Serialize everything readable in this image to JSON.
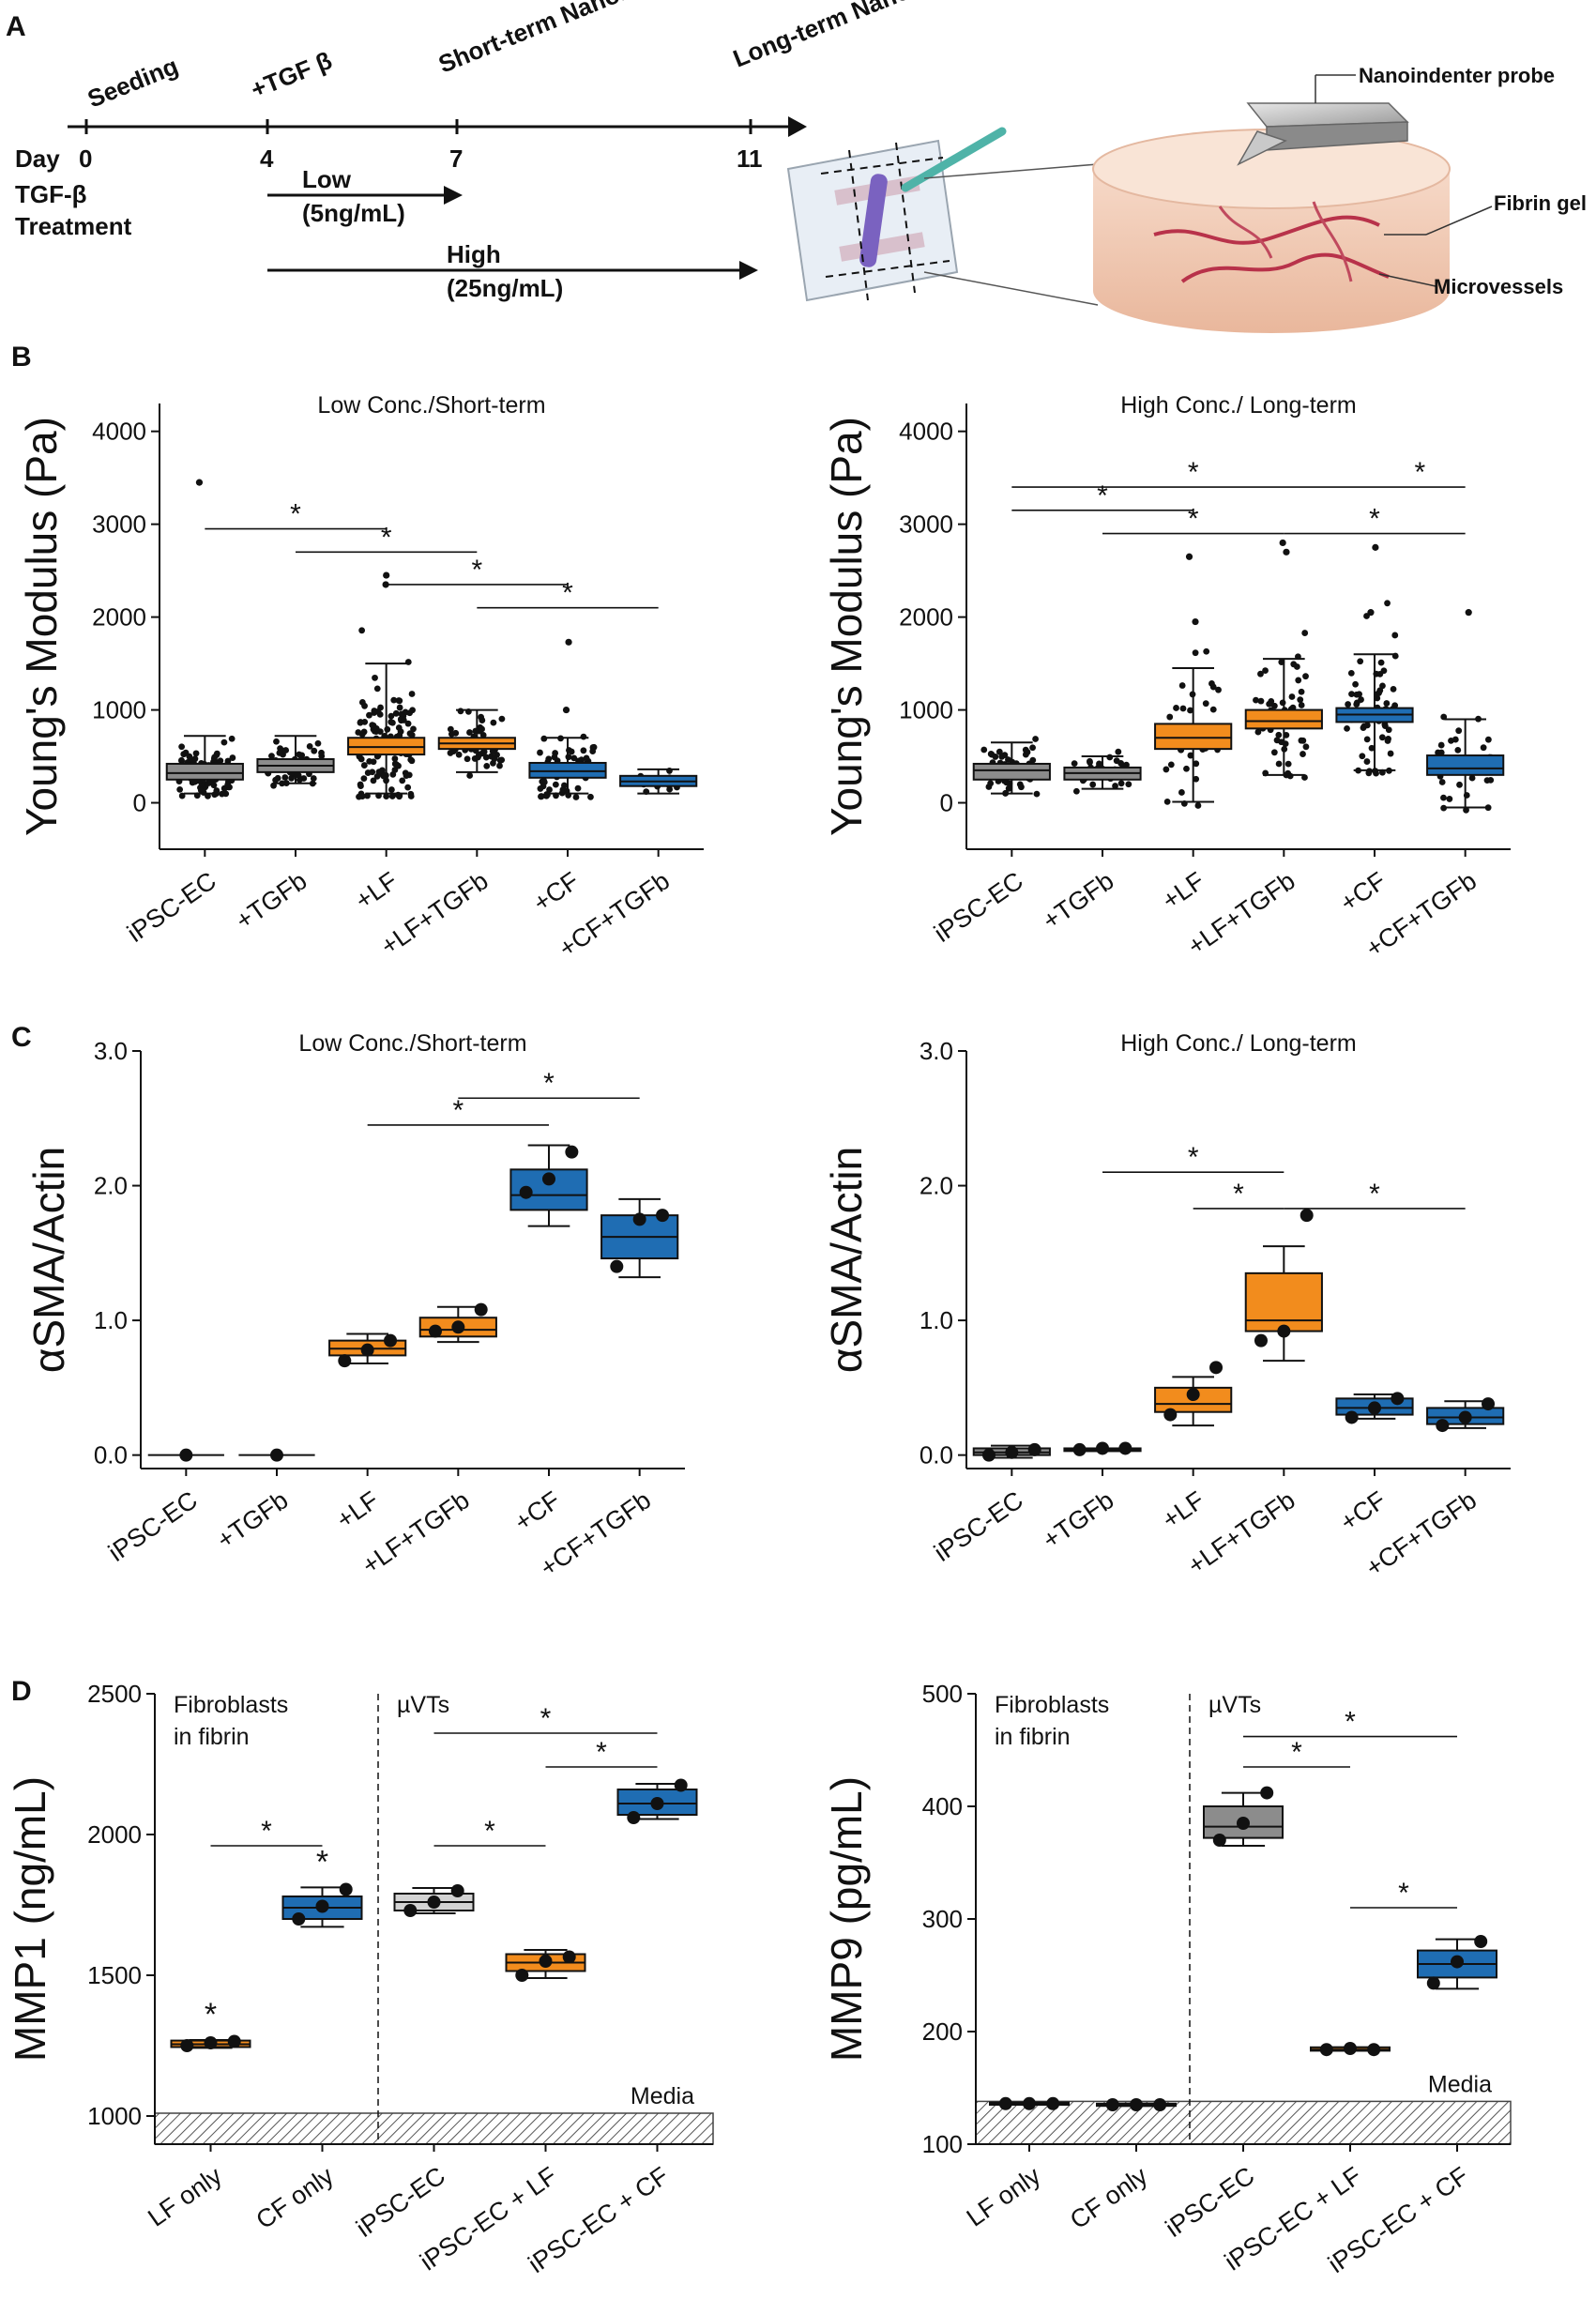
{
  "panel_a": {
    "letter": "A",
    "timeline": {
      "events": [
        {
          "label": "Seeding",
          "day": "0"
        },
        {
          "label": "+TGF β",
          "day": "4"
        },
        {
          "label": "Short-term Nanoindentation",
          "day": "7"
        },
        {
          "label": "Long-term Nanoindentation",
          "day": "11"
        }
      ],
      "day_label": "Day",
      "treatment_label_1": "TGF-β",
      "treatment_label_2": "Treatment",
      "low_label": "Low",
      "low_conc": "(5ng/mL)",
      "high_label": "High",
      "high_conc": "(25ng/mL)"
    },
    "schematic": {
      "probe": "Nanoindenter probe",
      "gel": "Fibrin gel",
      "vessels": "Microvessels"
    }
  },
  "colors": {
    "orange": "#f28c1d",
    "blue": "#1f6db3",
    "gray": "#8c8c8c",
    "lightgray": "#d3d3d3",
    "ink": "#111111"
  },
  "chart_data": [
    {
      "id": "B-left",
      "panel": "B",
      "type": "scatter",
      "title": "Low Conc./Short-term",
      "ylabel": "Young's Modulus (Pa)",
      "ylim": [
        -500,
        4300
      ],
      "yticks": [
        0,
        1000,
        2000,
        3000,
        4000
      ],
      "categories": [
        "iPSC-EC",
        "+TGFb",
        "+LF",
        "+LF+TGFb",
        "+CF",
        "+CF+TGFb"
      ],
      "colors": [
        "#8c8c8c",
        "#8c8c8c",
        "#f28c1d",
        "#f28c1d",
        "#1f6db3",
        "#1f6db3"
      ],
      "series": [
        {
          "name": "iPSC-EC",
          "n": 120,
          "box": [
            250,
            320,
            420
          ],
          "whisker": [
            100,
            720
          ],
          "spread": 140,
          "outliers": [
            3450
          ]
        },
        {
          "name": "+TGFb",
          "n": 60,
          "box": [
            330,
            400,
            470
          ],
          "whisker": [
            210,
            720
          ],
          "spread": 110,
          "outliers": []
        },
        {
          "name": "+LF",
          "n": 130,
          "box": [
            520,
            600,
            700
          ],
          "whisker": [
            100,
            1500
          ],
          "spread": 330,
          "outliers": [
            2350,
            2450
          ]
        },
        {
          "name": "+LF+TGFb",
          "n": 55,
          "box": [
            580,
            640,
            700
          ],
          "whisker": [
            330,
            1000
          ],
          "spread": 170,
          "outliers": []
        },
        {
          "name": "+CF",
          "n": 70,
          "box": [
            270,
            340,
            430
          ],
          "whisker": [
            100,
            700
          ],
          "spread": 160,
          "outliers": [
            1730,
            1000
          ]
        },
        {
          "name": "+CF+TGFb",
          "n": 20,
          "box": [
            180,
            230,
            290
          ],
          "whisker": [
            100,
            360
          ],
          "spread": 60,
          "outliers": []
        }
      ],
      "significance": [
        {
          "from": 0,
          "to": 2,
          "y": 2950,
          "label": "*"
        },
        {
          "from": 1,
          "to": 3,
          "y": 2700,
          "label": "*"
        },
        {
          "from": 2,
          "to": 4,
          "y": 2350,
          "label": "*"
        },
        {
          "from": 3,
          "to": 5,
          "y": 2100,
          "label": "*"
        }
      ]
    },
    {
      "id": "B-right",
      "panel": "",
      "type": "scatter",
      "title": "High Conc./ Long-term",
      "ylabel": "Young's Modulus (Pa)",
      "ylim": [
        -500,
        4300
      ],
      "yticks": [
        0,
        1000,
        2000,
        3000,
        4000
      ],
      "categories": [
        "iPSC-EC",
        "+TGFb",
        "+LF",
        "+LF+TGFb",
        "+CF",
        "+CF+TGFb"
      ],
      "colors": [
        "#8c8c8c",
        "#8c8c8c",
        "#f28c1d",
        "#f28c1d",
        "#1f6db3",
        "#1f6db3"
      ],
      "series": [
        {
          "name": "iPSC-EC",
          "n": 60,
          "box": [
            250,
            350,
            420
          ],
          "whisker": [
            100,
            650
          ],
          "spread": 160,
          "outliers": []
        },
        {
          "name": "+TGFb",
          "n": 35,
          "box": [
            250,
            320,
            380
          ],
          "whisker": [
            150,
            500
          ],
          "spread": 90,
          "outliers": []
        },
        {
          "name": "+LF",
          "n": 45,
          "box": [
            580,
            700,
            850
          ],
          "whisker": [
            10,
            1450
          ],
          "spread": 380,
          "outliers": [
            2650,
            1950
          ]
        },
        {
          "name": "+LF+TGFb",
          "n": 50,
          "box": [
            800,
            880,
            1000
          ],
          "whisker": [
            300,
            1550
          ],
          "spread": 380,
          "outliers": [
            2800,
            2700
          ]
        },
        {
          "name": "+CF",
          "n": 60,
          "box": [
            870,
            950,
            1020
          ],
          "whisker": [
            350,
            1600
          ],
          "spread": 380,
          "outliers": [
            2750,
            2050
          ]
        },
        {
          "name": "+CF+TGFb",
          "n": 30,
          "box": [
            300,
            370,
            510
          ],
          "whisker": [
            -50,
            900
          ],
          "spread": 280,
          "outliers": [
            2050
          ]
        }
      ],
      "significance": [
        {
          "from": 0,
          "to": 4,
          "y": 3400,
          "label": "*"
        },
        {
          "from": 4,
          "to": 5,
          "y": 3400,
          "label": "*"
        },
        {
          "from": 0,
          "to": 2,
          "y": 3150,
          "label": "*"
        },
        {
          "from": 1,
          "to": 3,
          "y": 2900,
          "label": "*"
        },
        {
          "from": 3,
          "to": 5,
          "y": 2900,
          "label": "*"
        }
      ]
    },
    {
      "id": "C-left",
      "panel": "C",
      "type": "box",
      "title": "Low Conc./Short-term",
      "ylabel": "αSMA/Actin",
      "ylim": [
        -0.1,
        3.0
      ],
      "yticks": [
        0.0,
        1.0,
        2.0,
        3.0
      ],
      "tick_decimals": 1,
      "categories": [
        "iPSC-EC",
        "+TGFb",
        "+LF",
        "+LF+TGFb",
        "+CF",
        "+CF+TGFb"
      ],
      "colors": [
        "#8c8c8c",
        "#8c8c8c",
        "#f28c1d",
        "#f28c1d",
        "#1f6db3",
        "#1f6db3"
      ],
      "series": [
        {
          "name": "iPSC-EC",
          "points": [
            0.0
          ],
          "box": null,
          "whisker": null
        },
        {
          "name": "+TGFb",
          "points": [
            0.0
          ],
          "box": null,
          "whisker": null
        },
        {
          "name": "+LF",
          "points": [
            0.7,
            0.78,
            0.85
          ],
          "box": [
            0.74,
            0.79,
            0.85
          ],
          "whisker": [
            0.68,
            0.9
          ]
        },
        {
          "name": "+LF+TGFb",
          "points": [
            0.92,
            0.95,
            1.08
          ],
          "box": [
            0.88,
            0.93,
            1.02
          ],
          "whisker": [
            0.84,
            1.1
          ]
        },
        {
          "name": "+CF",
          "points": [
            1.95,
            2.05,
            2.25
          ],
          "box": [
            1.82,
            1.93,
            2.12
          ],
          "whisker": [
            1.7,
            2.3
          ]
        },
        {
          "name": "+CF+TGFb",
          "points": [
            1.4,
            1.75,
            1.78
          ],
          "box": [
            1.46,
            1.62,
            1.78
          ],
          "whisker": [
            1.32,
            1.9
          ]
        }
      ],
      "significance": [
        {
          "from": 2,
          "to": 4,
          "y": 2.45,
          "label": "*"
        },
        {
          "from": 3,
          "to": 5,
          "y": 2.65,
          "label": "*"
        }
      ]
    },
    {
      "id": "C-right",
      "panel": "",
      "type": "box",
      "title": "High Conc./ Long-term",
      "ylabel": "αSMA/Actin",
      "ylim": [
        -0.1,
        3.0
      ],
      "yticks": [
        0.0,
        1.0,
        2.0,
        3.0
      ],
      "tick_decimals": 1,
      "categories": [
        "iPSC-EC",
        "+TGFb",
        "+LF",
        "+LF+TGFb",
        "+CF",
        "+CF+TGFb"
      ],
      "colors": [
        "#8c8c8c",
        "#8c8c8c",
        "#f28c1d",
        "#f28c1d",
        "#1f6db3",
        "#1f6db3"
      ],
      "series": [
        {
          "name": "iPSC-EC",
          "points": [
            0.0,
            0.02,
            0.04
          ],
          "box": [
            0.0,
            0.02,
            0.05
          ],
          "whisker": [
            -0.02,
            0.07
          ]
        },
        {
          "name": "+TGFb",
          "points": [
            0.04,
            0.05,
            0.05
          ],
          "box": [
            0.03,
            0.04,
            0.05
          ],
          "whisker": [
            0.03,
            0.05
          ]
        },
        {
          "name": "+LF",
          "points": [
            0.3,
            0.45,
            0.65
          ],
          "box": [
            0.32,
            0.38,
            0.5
          ],
          "whisker": [
            0.22,
            0.58
          ]
        },
        {
          "name": "+LF+TGFb",
          "points": [
            0.85,
            0.92,
            1.78
          ],
          "box": [
            0.92,
            1.0,
            1.35
          ],
          "whisker": [
            0.7,
            1.55
          ]
        },
        {
          "name": "+CF",
          "points": [
            0.28,
            0.35,
            0.42
          ],
          "box": [
            0.3,
            0.35,
            0.42
          ],
          "whisker": [
            0.27,
            0.45
          ]
        },
        {
          "name": "+CF+TGFb",
          "points": [
            0.22,
            0.28,
            0.38
          ],
          "box": [
            0.23,
            0.28,
            0.35
          ],
          "whisker": [
            0.2,
            0.4
          ]
        }
      ],
      "significance": [
        {
          "from": 1,
          "to": 3,
          "y": 2.1,
          "label": "*"
        },
        {
          "from": 2,
          "to": 3,
          "y": 1.83,
          "label": "*"
        },
        {
          "from": 3,
          "to": 5,
          "y": 1.83,
          "label": "*"
        }
      ]
    },
    {
      "id": "D-left",
      "panel": "D",
      "type": "box",
      "title": "",
      "ylabel": "MMP1 (ng/mL)",
      "ylim": [
        900,
        2500
      ],
      "yticks": [
        1000,
        1500,
        2000,
        2500
      ],
      "tick_decimals": 0,
      "categories": [
        "LF only",
        "CF only",
        "iPSC-EC",
        "iPSC-EC + LF",
        "iPSC-EC + CF"
      ],
      "colors": [
        "#f28c1d",
        "#1f6db3",
        "#d3d3d3",
        "#f28c1d",
        "#1f6db3"
      ],
      "divider_after": 1,
      "left_group": [
        "Fibroblasts",
        "in fibrin"
      ],
      "right_group": "µVTs",
      "media_label": "Media",
      "media_level": 1010,
      "series": [
        {
          "name": "LF only",
          "points": [
            1250,
            1260,
            1265
          ],
          "box": [
            1245,
            1255,
            1268
          ],
          "whisker": [
            1242,
            1270
          ],
          "star": true
        },
        {
          "name": "CF only",
          "points": [
            1700,
            1745,
            1805
          ],
          "box": [
            1700,
            1740,
            1780
          ],
          "whisker": [
            1672,
            1812
          ],
          "star": true
        },
        {
          "name": "iPSC-EC",
          "points": [
            1730,
            1760,
            1800
          ],
          "box": [
            1730,
            1760,
            1790
          ],
          "whisker": [
            1720,
            1810
          ],
          "star": false
        },
        {
          "name": "iPSC-EC + LF",
          "points": [
            1500,
            1550,
            1565
          ],
          "box": [
            1515,
            1545,
            1575
          ],
          "whisker": [
            1490,
            1590
          ],
          "star": false
        },
        {
          "name": "iPSC-EC + CF",
          "points": [
            2060,
            2110,
            2175
          ],
          "box": [
            2070,
            2110,
            2160
          ],
          "whisker": [
            2055,
            2180
          ],
          "star": false
        }
      ],
      "significance": [
        {
          "from": 0,
          "to": 1,
          "y": 1960,
          "label": "*"
        },
        {
          "from": 2,
          "to": 3,
          "y": 1960,
          "label": "*"
        },
        {
          "from": 3,
          "to": 4,
          "y": 2240,
          "label": "*"
        },
        {
          "from": 2,
          "to": 4,
          "y": 2360,
          "label": "*"
        }
      ]
    },
    {
      "id": "D-right",
      "panel": "",
      "type": "box",
      "title": "",
      "ylabel": "MMP9 (pg/mL)",
      "ylim": [
        100,
        500
      ],
      "yticks": [
        100,
        200,
        300,
        400,
        500
      ],
      "tick_decimals": 0,
      "categories": [
        "LF only",
        "CF only",
        "iPSC-EC",
        "iPSC-EC + LF",
        "iPSC-EC + CF"
      ],
      "colors": [
        "#f28c1d",
        "#1f6db3",
        "#8c8c8c",
        "#f28c1d",
        "#1f6db3"
      ],
      "divider_after": 1,
      "left_group": [
        "Fibroblasts",
        "in fibrin"
      ],
      "right_group": "µVTs",
      "media_label": "Media",
      "media_level": 138,
      "series": [
        {
          "name": "LF only",
          "points": [
            136,
            136,
            136
          ],
          "box": [
            135,
            136,
            137
          ],
          "whisker": [
            135,
            137
          ],
          "star": false
        },
        {
          "name": "CF only",
          "points": [
            135,
            135,
            135
          ],
          "box": [
            134,
            135,
            136
          ],
          "whisker": [
            134,
            136
          ],
          "star": false
        },
        {
          "name": "iPSC-EC",
          "points": [
            370,
            385,
            412
          ],
          "box": [
            372,
            382,
            400
          ],
          "whisker": [
            365,
            412
          ],
          "star": false
        },
        {
          "name": "iPSC-EC + LF",
          "points": [
            184,
            185,
            184
          ],
          "box": [
            183,
            184,
            186
          ],
          "whisker": [
            183,
            186
          ],
          "star": false
        },
        {
          "name": "iPSC-EC + CF",
          "points": [
            243,
            262,
            280
          ],
          "box": [
            248,
            260,
            272
          ],
          "whisker": [
            238,
            282
          ],
          "star": false
        }
      ],
      "significance": [
        {
          "from": 2,
          "to": 3,
          "y": 435,
          "label": "*"
        },
        {
          "from": 2,
          "to": 4,
          "y": 462,
          "label": "*"
        },
        {
          "from": 3,
          "to": 4,
          "y": 310,
          "label": "*"
        }
      ]
    }
  ]
}
